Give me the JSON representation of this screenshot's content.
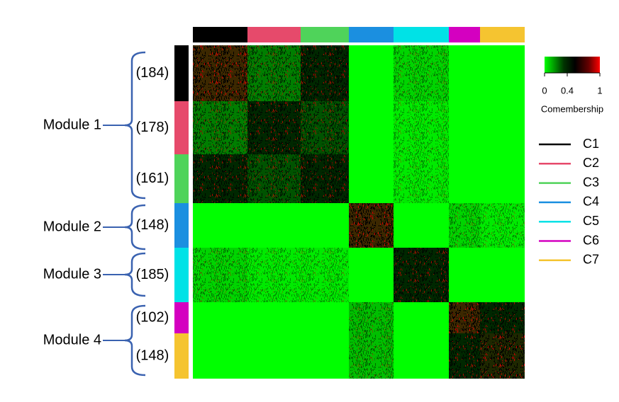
{
  "colorbar": {
    "title": "Comembership",
    "ticks": [
      "0",
      "0.4",
      "1"
    ]
  },
  "clusters": [
    {
      "name": "C1",
      "color": "#000000",
      "size": "(184)"
    },
    {
      "name": "C2",
      "color": "#e64a6b",
      "size": "(178)"
    },
    {
      "name": "C3",
      "color": "#4fd35a",
      "size": "(161)"
    },
    {
      "name": "C4",
      "color": "#1b8fe0",
      "size": "(148)"
    },
    {
      "name": "C5",
      "color": "#00e2e6",
      "size": "(185)"
    },
    {
      "name": "C6",
      "color": "#d400c0",
      "size": "(102)"
    },
    {
      "name": "C7",
      "color": "#f5c430",
      "size": "(148)"
    }
  ],
  "modules": [
    {
      "label": "Module 1"
    },
    {
      "label": "Module 2"
    },
    {
      "label": "Module 3"
    },
    {
      "label": "Module 4"
    }
  ]
}
